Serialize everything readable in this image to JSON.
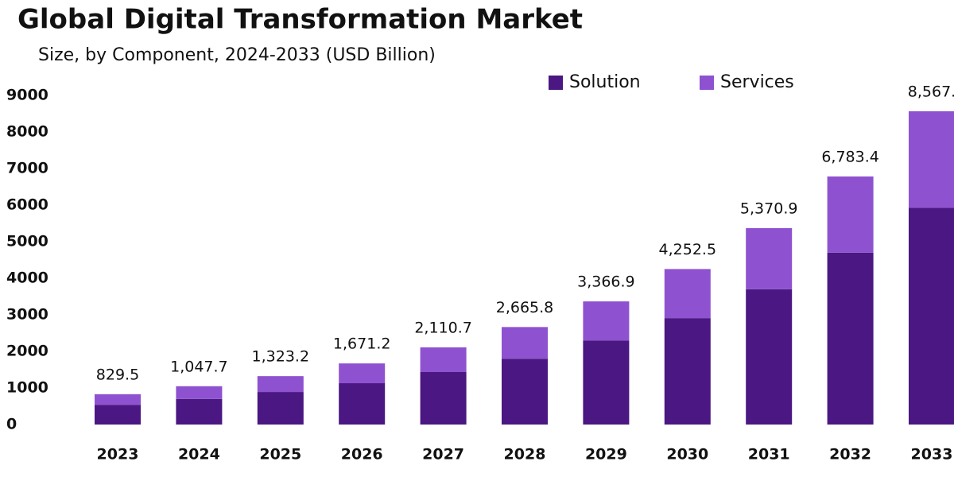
{
  "chart_data": {
    "type": "stacked_bar",
    "title": "Global Digital Transformation Market",
    "subtitle": "Size, by Component, 2024-2033 (USD Billion)",
    "categories": [
      "2023",
      "2024",
      "2025",
      "2026",
      "2027",
      "2028",
      "2029",
      "2030",
      "2031",
      "2032",
      "2033"
    ],
    "series": [
      {
        "name": "Solution",
        "color": "#4b1782",
        "values": [
          540,
          700,
          890,
          1130,
          1435,
          1800,
          2300,
          2910,
          3700,
          4700,
          5930
        ]
      },
      {
        "name": "Services",
        "color": "#8e52d0",
        "values": [
          290,
          348,
          433,
          541,
          676,
          866,
          1067,
          1342,
          1671,
          2083,
          2637
        ]
      }
    ],
    "totals": [
      829.5,
      1047.7,
      1323.2,
      1671.2,
      2110.7,
      2665.8,
      3366.9,
      4252.5,
      5370.9,
      6783.4,
      8567
    ],
    "total_labels": [
      "829.5",
      "1,047.7",
      "1,323.2",
      "1,671.2",
      "2,110.7",
      "2,665.8",
      "3,366.9",
      "4,252.5",
      "5,370.9",
      "6,783.4",
      "8,567."
    ],
    "ylim": [
      0,
      9000
    ],
    "yticks": [
      0,
      1000,
      2000,
      3000,
      4000,
      5000,
      6000,
      7000,
      8000,
      9000
    ],
    "grid": false,
    "legend": "top"
  }
}
